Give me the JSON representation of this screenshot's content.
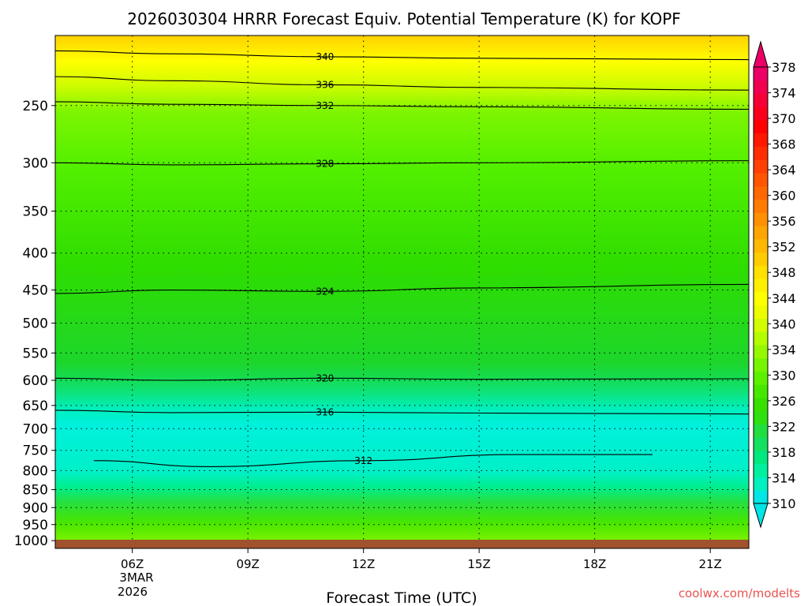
{
  "chart_data": {
    "type": "heatmap",
    "title": "2026030304 HRRR Forecast Equiv. Potential Temperature (K) for KOPF",
    "xlabel": "Forecast Time (UTC)",
    "ylabel": "",
    "x_ticks": [
      "06Z",
      "09Z",
      "12Z",
      "15Z",
      "18Z",
      "21Z"
    ],
    "x_tick_hours": [
      6,
      9,
      12,
      15,
      18,
      21
    ],
    "date_label": [
      "3MAR",
      "2026"
    ],
    "x_range_hours": [
      4,
      22
    ],
    "y_ticks": [
      250,
      300,
      350,
      400,
      450,
      500,
      550,
      600,
      650,
      700,
      750,
      800,
      850,
      900,
      950,
      1000
    ],
    "y_range_hpa": [
      1025,
      200
    ],
    "y_scale": "log",
    "grid": "dotted",
    "colorbar": {
      "labels": [
        310,
        314,
        318,
        322,
        326,
        330,
        334,
        340,
        344,
        348,
        352,
        356,
        360,
        364,
        368,
        370,
        374,
        378
      ],
      "levels": [
        310,
        312,
        314,
        316,
        318,
        320,
        322,
        324,
        326,
        328,
        330,
        332,
        334,
        336,
        338,
        340,
        342,
        344,
        346,
        348,
        350,
        352,
        354,
        356,
        358,
        360,
        362,
        364,
        366,
        368,
        370,
        372,
        374,
        376,
        378
      ],
      "colors": [
        "#00e5e5",
        "#00f0c0",
        "#00f0a0",
        "#00e880",
        "#14e060",
        "#20dd40",
        "#2ee010",
        "#38e000",
        "#46e800",
        "#5cf000",
        "#78f400",
        "#96f800",
        "#b4fc00",
        "#d2fc00",
        "#eefc00",
        "#ffff00",
        "#fff000",
        "#ffe000",
        "#ffcc00",
        "#ffb800",
        "#ffa400",
        "#ff9000",
        "#ff7c00",
        "#ff6800",
        "#ff5400",
        "#ff4000",
        "#ff2c00",
        "#ff1800",
        "#ff0000",
        "#f8001c",
        "#f40036",
        "#f0004e",
        "#ec0066"
      ],
      "extend": "both"
    },
    "contour_labels": [
      340,
      336,
      332,
      328,
      324,
      320,
      316,
      312
    ],
    "series": [
      {
        "name": "340",
        "x": [
          4,
          7,
          11,
          15,
          22
        ],
        "y": [
          210,
          212,
          214,
          215,
          216
        ]
      },
      {
        "name": "336",
        "x": [
          4,
          7,
          11,
          15,
          22
        ],
        "y": [
          228,
          231,
          234,
          236,
          238
        ]
      },
      {
        "name": "332",
        "x": [
          4,
          7,
          11,
          15,
          22
        ],
        "y": [
          247,
          249,
          250,
          251,
          253
        ]
      },
      {
        "name": "328",
        "x": [
          4,
          7,
          11,
          15,
          22
        ],
        "y": [
          300,
          302,
          301,
          300,
          298
        ]
      },
      {
        "name": "324",
        "x": [
          4,
          7,
          11,
          15,
          22
        ],
        "y": [
          455,
          450,
          452,
          447,
          442
        ]
      },
      {
        "name": "320",
        "x": [
          4,
          7,
          11,
          15,
          22
        ],
        "y": [
          596,
          600,
          596,
          598,
          597
        ]
      },
      {
        "name": "316",
        "x": [
          4,
          7,
          11,
          15,
          22
        ],
        "y": [
          660,
          665,
          664,
          666,
          668
        ]
      },
      {
        "name": "312",
        "x": [
          5,
          8,
          12,
          16,
          19.5
        ],
        "y": [
          775,
          790,
          775,
          760,
          760
        ]
      }
    ],
    "surface": {
      "label": "1000",
      "color": "#a0522d"
    }
  },
  "watermark": "coolwx.com/modelts",
  "colors": {
    "background": "#ffffff",
    "axis": "#000000",
    "gridline": "#000000",
    "surface": "#a0522d"
  }
}
